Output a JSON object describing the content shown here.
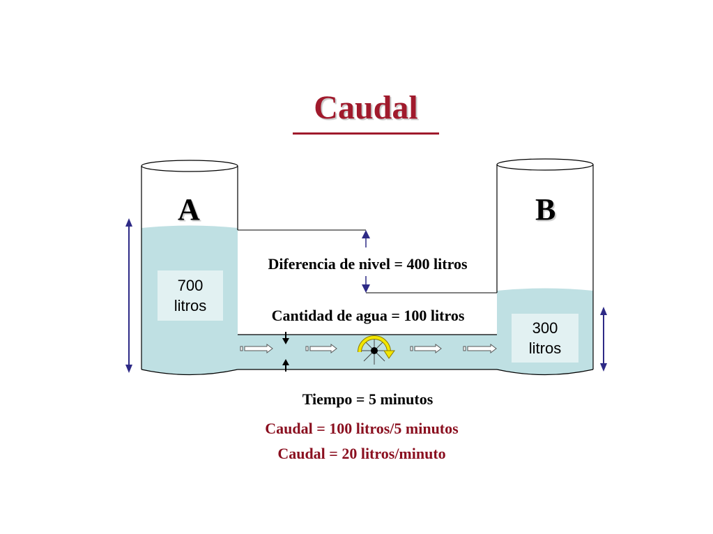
{
  "title": "Caudal",
  "tanks": {
    "a": {
      "letter": "A",
      "volume": "700\nlitros"
    },
    "b": {
      "letter": "B",
      "volume": "300\nlitros"
    }
  },
  "labels": {
    "level_difference": "Diferencia de nivel = 400 litros",
    "water_amount": "Cantidad de agua = 100 litros",
    "time": "Tiempo = 5 minutos",
    "flow_calc": "Caudal = 100 litros/5 minutos",
    "flow_result": "Caudal = 20 litros/minuto"
  },
  "colors": {
    "title": "#a01a2c",
    "water": "#bfe0e3",
    "dimension_arrows": "#2e2a86",
    "meter_arrow": "#f2e600"
  }
}
